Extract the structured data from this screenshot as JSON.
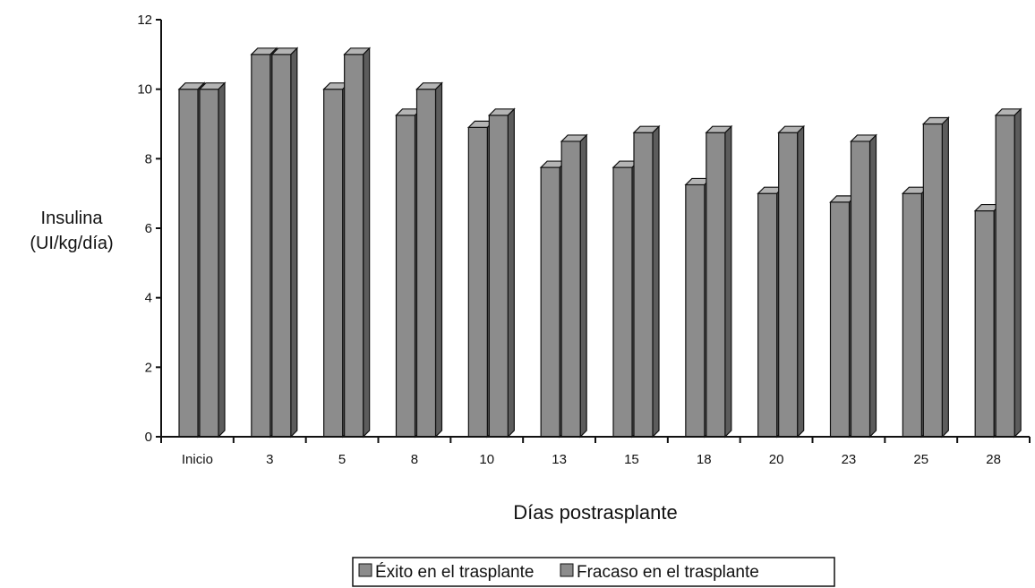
{
  "chart_data": {
    "type": "bar",
    "categories": [
      "Inicio",
      "3",
      "5",
      "8",
      "10",
      "13",
      "15",
      "18",
      "20",
      "23",
      "25",
      "28"
    ],
    "series": [
      {
        "name": "Éxito en el trasplante",
        "values": [
          10.0,
          11.0,
          10.0,
          9.25,
          8.9,
          7.75,
          7.75,
          7.25,
          7.0,
          6.75,
          7.0,
          6.5
        ]
      },
      {
        "name": "Fracaso en el trasplante",
        "values": [
          10.0,
          11.0,
          11.0,
          10.0,
          9.25,
          8.5,
          8.75,
          8.75,
          8.75,
          8.5,
          9.0,
          9.25
        ]
      }
    ],
    "ylim": [
      0,
      12
    ],
    "yticks": [
      "0",
      "2",
      "4",
      "6",
      "8",
      "10",
      "12"
    ],
    "ylabel_line1": "Insulina",
    "ylabel_line2": "(UI/kg/día)",
    "xlabel": "Días postrasplante",
    "legend_position": "bottom",
    "grid": false,
    "colors": {
      "bar_front": "#8c8c8c",
      "bar_side": "#5c5c5c",
      "bar_top": "#b4b4b4",
      "axis": "#111111"
    }
  }
}
